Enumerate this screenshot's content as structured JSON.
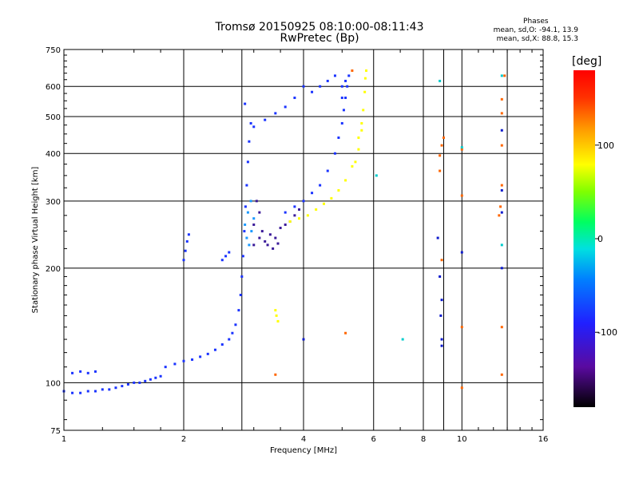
{
  "title": {
    "line1": "Tromsø 20150925 08:10:00-08:11:43",
    "line2": "RwPretec (Bp)"
  },
  "phase_stats": {
    "title": "Phases",
    "line_o": "mean, sd,O: -94.1, 13.9",
    "line_x": "mean, sd,X: 88.8, 15.3"
  },
  "colorbar": {
    "title": "[deg]",
    "ticks": [
      {
        "value": 100,
        "label": "100"
      },
      {
        "value": 0,
        "label": "0"
      },
      {
        "value": -100,
        "label": "-100"
      }
    ],
    "range": [
      -180,
      180
    ]
  },
  "chart_data": {
    "type": "scatter",
    "title": "Tromsø 20150925 08:10:00-08:11:43",
    "subtitle": "RwPretec (Bp)",
    "xlabel": "Frequency [MHz]",
    "ylabel": "Stationary phase Virtual Height [km]",
    "xscale": "log",
    "yscale": "log",
    "xlim": [
      1,
      16
    ],
    "ylim": [
      75,
      750
    ],
    "x_ticks": [
      1,
      2,
      4,
      6,
      8,
      10,
      16
    ],
    "y_ticks": [
      75,
      100,
      200,
      300,
      400,
      500,
      600,
      750
    ],
    "v_gridlines": [
      1,
      2,
      4,
      6,
      8,
      10,
      16
    ],
    "h_gridlines": [
      100,
      200,
      300,
      400,
      500,
      600
    ],
    "extra_vlines": [
      2.8,
      9.0,
      13.0
    ],
    "grid": true,
    "series": [
      {
        "color": "#1a33ff",
        "points": [
          [
            1.0,
            95
          ],
          [
            1.05,
            94
          ],
          [
            1.1,
            94
          ],
          [
            1.15,
            95
          ],
          [
            1.2,
            95
          ],
          [
            1.25,
            96
          ],
          [
            1.3,
            96
          ],
          [
            1.35,
            97
          ],
          [
            1.4,
            98
          ],
          [
            1.45,
            99
          ],
          [
            1.5,
            100
          ],
          [
            1.55,
            100
          ],
          [
            1.6,
            101
          ],
          [
            1.65,
            102
          ],
          [
            1.7,
            103
          ],
          [
            1.75,
            104
          ],
          [
            1.05,
            106
          ],
          [
            1.1,
            107
          ],
          [
            1.15,
            106
          ],
          [
            1.2,
            107
          ],
          [
            1.8,
            110
          ],
          [
            1.9,
            112
          ],
          [
            2.0,
            114
          ],
          [
            2.1,
            115
          ],
          [
            2.2,
            117
          ],
          [
            2.3,
            119
          ],
          [
            2.4,
            122
          ],
          [
            2.5,
            126
          ],
          [
            2.6,
            130
          ],
          [
            2.65,
            135
          ],
          [
            2.7,
            142
          ],
          [
            2.75,
            155
          ],
          [
            2.78,
            170
          ],
          [
            2.8,
            190
          ],
          [
            2.82,
            215
          ],
          [
            2.84,
            250
          ],
          [
            2.86,
            290
          ],
          [
            2.88,
            330
          ],
          [
            2.9,
            380
          ],
          [
            2.92,
            430
          ],
          [
            2.95,
            480
          ],
          [
            2.85,
            540
          ],
          [
            2.5,
            210
          ],
          [
            2.55,
            215
          ],
          [
            2.6,
            220
          ],
          [
            2.0,
            210
          ],
          [
            2.02,
            222
          ],
          [
            2.04,
            235
          ],
          [
            2.06,
            245
          ],
          [
            3.6,
            280
          ],
          [
            3.8,
            290
          ],
          [
            4.0,
            300
          ],
          [
            4.2,
            315
          ],
          [
            4.4,
            330
          ],
          [
            4.6,
            360
          ],
          [
            4.8,
            400
          ],
          [
            4.9,
            440
          ],
          [
            5.0,
            480
          ],
          [
            5.05,
            520
          ],
          [
            5.1,
            560
          ],
          [
            5.15,
            600
          ],
          [
            5.2,
            640
          ],
          [
            4.6,
            620
          ],
          [
            4.4,
            600
          ],
          [
            4.2,
            580
          ],
          [
            4.0,
            600
          ],
          [
            3.8,
            560
          ],
          [
            3.6,
            530
          ],
          [
            3.4,
            510
          ],
          [
            3.2,
            490
          ],
          [
            3.0,
            470
          ],
          [
            4.8,
            640
          ],
          [
            5.0,
            560
          ],
          [
            5.0,
            600
          ],
          [
            5.1,
            620
          ]
        ]
      },
      {
        "color": "#3a1a99",
        "points": [
          [
            3.0,
            230
          ],
          [
            3.1,
            240
          ],
          [
            3.2,
            235
          ],
          [
            3.3,
            245
          ],
          [
            3.4,
            240
          ],
          [
            3.5,
            255
          ],
          [
            3.6,
            260
          ],
          [
            3.7,
            265
          ],
          [
            3.8,
            275
          ],
          [
            3.9,
            285
          ],
          [
            3.0,
            260
          ],
          [
            3.05,
            300
          ],
          [
            3.1,
            280
          ],
          [
            3.15,
            250
          ],
          [
            3.25,
            230
          ],
          [
            3.35,
            225
          ],
          [
            3.45,
            232
          ]
        ]
      },
      {
        "color": "#1a99ff",
        "points": [
          [
            2.85,
            260
          ],
          [
            2.9,
            280
          ],
          [
            2.95,
            300
          ],
          [
            3.0,
            270
          ],
          [
            2.88,
            240
          ],
          [
            2.92,
            230
          ],
          [
            2.96,
            250
          ]
        ]
      },
      {
        "color": "#ffff00",
        "points": [
          [
            3.7,
            265
          ],
          [
            3.9,
            270
          ],
          [
            4.1,
            275
          ],
          [
            4.3,
            285
          ],
          [
            4.5,
            295
          ],
          [
            4.7,
            305
          ],
          [
            4.9,
            320
          ],
          [
            5.1,
            340
          ],
          [
            5.3,
            370
          ],
          [
            5.5,
            410
          ],
          [
            5.6,
            460
          ],
          [
            5.65,
            520
          ],
          [
            5.7,
            580
          ],
          [
            5.72,
            630
          ],
          [
            5.75,
            660
          ],
          [
            5.6,
            480
          ],
          [
            5.5,
            440
          ],
          [
            5.4,
            380
          ],
          [
            3.4,
            155
          ],
          [
            3.42,
            150
          ],
          [
            3.45,
            145
          ]
        ]
      },
      {
        "color": "#ff6600",
        "points": [
          [
            8.8,
            395
          ],
          [
            8.9,
            420
          ],
          [
            9.0,
            440
          ],
          [
            8.8,
            360
          ],
          [
            10.0,
            410
          ],
          [
            10.0,
            310
          ],
          [
            12.6,
            420
          ],
          [
            12.6,
            510
          ],
          [
            12.6,
            555
          ],
          [
            12.6,
            330
          ],
          [
            12.4,
            275
          ],
          [
            12.6,
            140
          ],
          [
            12.6,
            105
          ],
          [
            10.0,
            140
          ],
          [
            10.0,
            97
          ],
          [
            5.1,
            135
          ],
          [
            5.3,
            660
          ],
          [
            3.4,
            105
          ],
          [
            8.9,
            210
          ],
          [
            12.5,
            290
          ],
          [
            12.8,
            640
          ]
        ]
      },
      {
        "color": "#0d1acc",
        "points": [
          [
            8.7,
            240
          ],
          [
            8.8,
            190
          ],
          [
            8.9,
            165
          ],
          [
            8.85,
            150
          ],
          [
            8.9,
            130
          ],
          [
            8.9,
            125
          ],
          [
            12.6,
            200
          ],
          [
            12.6,
            320
          ],
          [
            12.6,
            280
          ],
          [
            4.0,
            130
          ],
          [
            12.6,
            460
          ],
          [
            10.0,
            220
          ]
        ]
      },
      {
        "color": "#00cccc",
        "points": [
          [
            7.1,
            130
          ],
          [
            6.1,
            350
          ],
          [
            8.8,
            620
          ],
          [
            12.6,
            230
          ],
          [
            12.6,
            640
          ],
          [
            10.0,
            415
          ]
        ]
      }
    ]
  }
}
